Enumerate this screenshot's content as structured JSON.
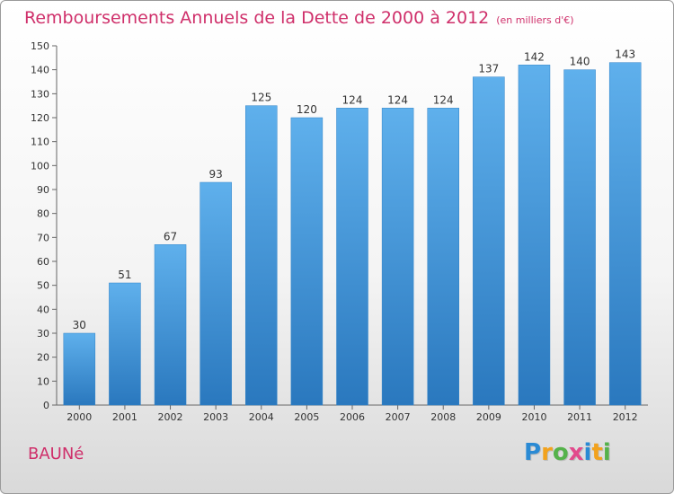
{
  "chart_data": {
    "type": "bar",
    "title": "Remboursements Annuels de la Dette de 2000 à 2012",
    "subtitle": "(en milliers d'€)",
    "categories": [
      "2000",
      "2001",
      "2002",
      "2003",
      "2004",
      "2005",
      "2006",
      "2007",
      "2008",
      "2009",
      "2010",
      "2011",
      "2012"
    ],
    "values": [
      30,
      51,
      67,
      93,
      125,
      120,
      124,
      124,
      124,
      137,
      142,
      140,
      143
    ],
    "ylim": [
      0,
      150
    ],
    "yticks": [
      0,
      10,
      20,
      30,
      40,
      50,
      60,
      70,
      80,
      90,
      100,
      110,
      120,
      130,
      140,
      150
    ],
    "grid": false,
    "bar_color": "#3d8fd6",
    "title_color": "#cf2f6a"
  },
  "place_name": "BAUNé",
  "logo": {
    "letters": [
      "P",
      "r",
      "o",
      "x",
      "i",
      "t",
      "i"
    ],
    "colors": [
      "#2a8ad4",
      "#f2a21d",
      "#54b24a",
      "#e24a8c",
      "#2a8ad4",
      "#f2a21d",
      "#54b24a"
    ]
  }
}
